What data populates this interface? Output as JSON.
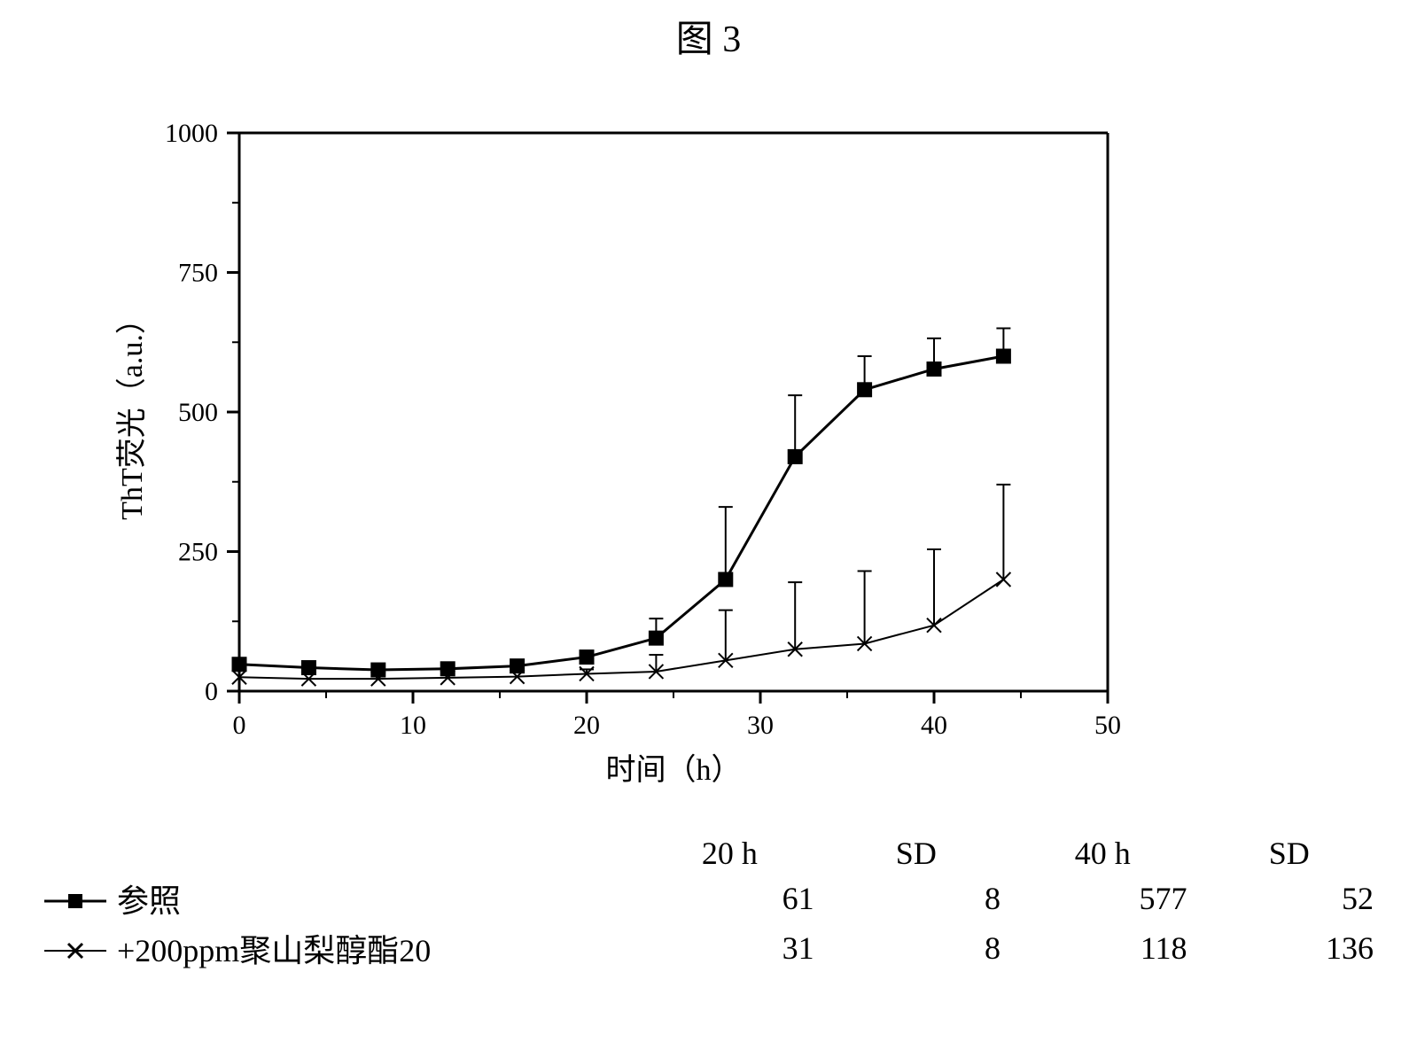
{
  "figure_title": "图 3",
  "chart": {
    "type": "line",
    "xlabel": "时间（h）",
    "ylabel": "ThT荧光（a.u.）",
    "label_fontsize": 34,
    "tick_fontsize": 30,
    "xlim": [
      0,
      50
    ],
    "ylim": [
      0,
      1000
    ],
    "xtick_step": 10,
    "ytick_step": 250,
    "xticks": [
      0,
      10,
      20,
      30,
      40,
      50
    ],
    "yticks": [
      0,
      250,
      500,
      750,
      1000
    ],
    "background_color": "#ffffff",
    "axis_color": "#000000",
    "axis_width": 3,
    "tick_length_major": 14,
    "tick_length_minor": 8,
    "series": [
      {
        "key": "reference",
        "label": "参照",
        "marker": "square",
        "marker_size": 16,
        "marker_fill": "#000000",
        "line_color": "#000000",
        "line_width": 3,
        "x": [
          0,
          4,
          8,
          12,
          16,
          20,
          24,
          28,
          32,
          36,
          40,
          44
        ],
        "y": [
          48,
          42,
          38,
          40,
          45,
          61,
          95,
          200,
          420,
          540,
          577,
          600
        ],
        "err": [
          0,
          0,
          0,
          0,
          0,
          8,
          35,
          130,
          110,
          60,
          55,
          50
        ]
      },
      {
        "key": "poly20",
        "label": "+200ppm聚山梨醇酯20",
        "marker": "x",
        "marker_size": 16,
        "marker_fill": "#000000",
        "line_color": "#000000",
        "line_width": 2,
        "x": [
          0,
          4,
          8,
          12,
          16,
          20,
          24,
          28,
          32,
          36,
          40,
          44
        ],
        "y": [
          25,
          22,
          22,
          24,
          26,
          31,
          35,
          55,
          75,
          85,
          118,
          200
        ],
        "err": [
          0,
          0,
          0,
          0,
          0,
          8,
          30,
          90,
          120,
          130,
          136,
          170
        ]
      }
    ]
  },
  "table": {
    "columns": [
      "",
      "20 h",
      "SD",
      "40 h",
      "SD"
    ],
    "rows": [
      {
        "series_key": "reference",
        "values": [
          61,
          8,
          577,
          52
        ]
      },
      {
        "series_key": "poly20",
        "values": [
          31,
          8,
          118,
          136
        ]
      }
    ]
  },
  "legend_markers": {
    "reference": "square",
    "poly20": "x"
  }
}
